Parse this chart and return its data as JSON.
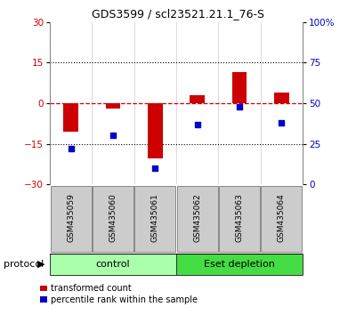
{
  "title": "GDS3599 / scl23521.21.1_76-S",
  "samples": [
    "GSM435059",
    "GSM435060",
    "GSM435061",
    "GSM435062",
    "GSM435063",
    "GSM435064"
  ],
  "red_values": [
    -10.5,
    -2.0,
    -20.5,
    3.0,
    11.5,
    4.0
  ],
  "blue_percentiles": [
    22,
    30,
    10,
    37,
    48,
    38
  ],
  "ylim_left": [
    -30,
    30
  ],
  "ylim_right": [
    0,
    100
  ],
  "groups": [
    {
      "label": "control",
      "indices": [
        0,
        1,
        2
      ],
      "color": "#aaffaa"
    },
    {
      "label": "Eset depletion",
      "indices": [
        3,
        4,
        5
      ],
      "color": "#44dd44"
    }
  ],
  "red_color": "#cc0000",
  "blue_color": "#0000cc",
  "protocol_label": "protocol",
  "legend_red": "transformed count",
  "legend_blue": "percentile rank within the sample",
  "hline_color": "#cc0000",
  "yticks_left": [
    -30,
    -15,
    0,
    15,
    30
  ],
  "yticks_right": [
    0,
    25,
    50,
    75,
    100
  ],
  "bar_width": 0.35,
  "sample_box_color": "#cccccc",
  "sample_box_edge": "#888888"
}
